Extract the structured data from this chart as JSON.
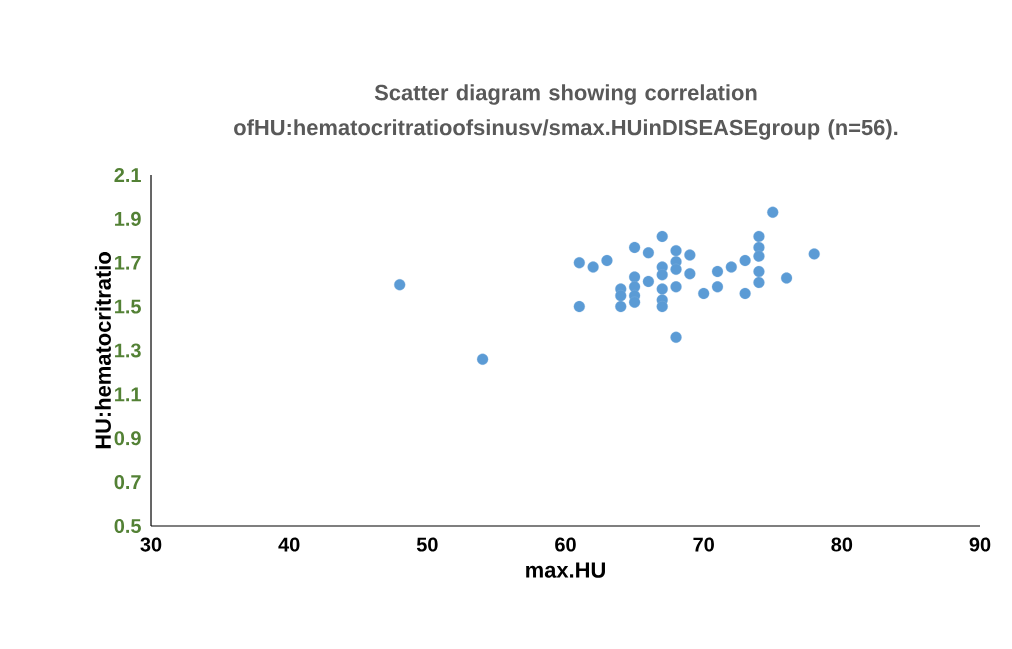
{
  "chart_data": {
    "type": "scatter",
    "title": "Scatter diagram showing correlation ofHU:hematocritratioofsinusv/smax.HUinDISEASEgroup (n=56).",
    "xlabel": "max.HU",
    "ylabel": "HU:hematocritratio",
    "xlim": [
      30,
      90
    ],
    "xticks": [
      30,
      40,
      50,
      60,
      70,
      80,
      90
    ],
    "ylim": [
      0.5,
      2.1
    ],
    "yticks": [
      0.5,
      0.7,
      0.9,
      1.1,
      1.3,
      1.5,
      1.7,
      1.9,
      2.1
    ],
    "grid": false,
    "marker": "circle",
    "series": [
      {
        "color": "#5b9bd5",
        "x": [
          48,
          54,
          61,
          61,
          62,
          63,
          65,
          66,
          67,
          68,
          69,
          67,
          68,
          68,
          67,
          69,
          65,
          66,
          65,
          65,
          65,
          64,
          64,
          64,
          67,
          67,
          67,
          68,
          68,
          70,
          71,
          71,
          72,
          73,
          73,
          74,
          74,
          74,
          74,
          74,
          75,
          76,
          78
        ],
        "values": [
          1.6,
          1.26,
          1.7,
          1.5,
          1.68,
          1.71,
          1.77,
          1.745,
          1.82,
          1.755,
          1.735,
          1.68,
          1.705,
          1.67,
          1.645,
          1.65,
          1.635,
          1.615,
          1.59,
          1.55,
          1.52,
          1.58,
          1.55,
          1.5,
          1.58,
          1.53,
          1.5,
          1.59,
          1.36,
          1.56,
          1.59,
          1.66,
          1.68,
          1.71,
          1.56,
          1.82,
          1.77,
          1.73,
          1.66,
          1.61,
          1.93,
          1.63,
          1.74
        ]
      }
    ]
  }
}
